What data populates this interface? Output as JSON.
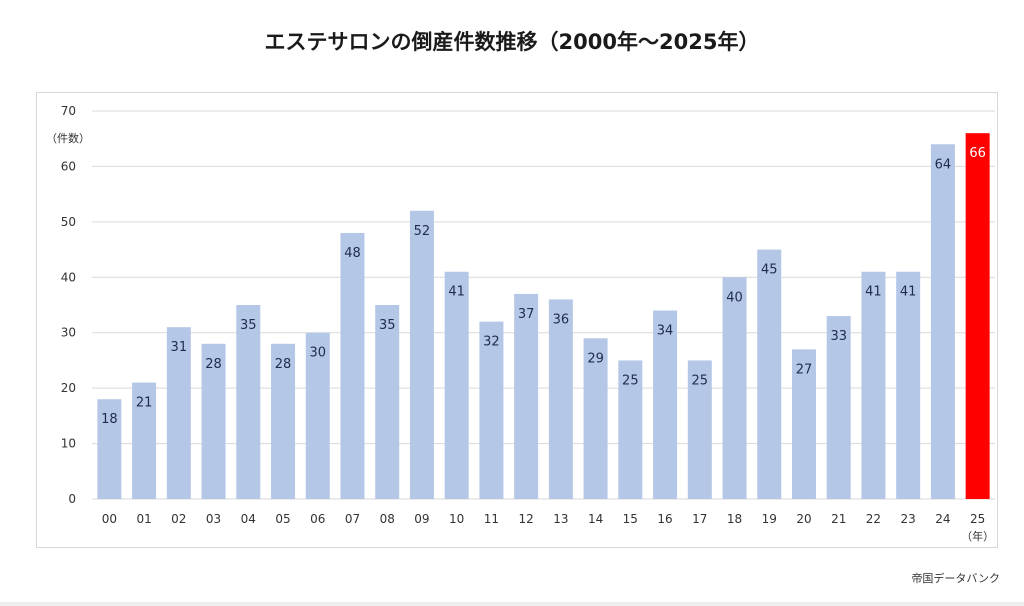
{
  "chart_data": {
    "type": "bar",
    "title": "エステサロンの倒産件数推移（2000年～2025年）",
    "ylabel": "（件数）",
    "xlabel": "（年）",
    "categories": [
      "00",
      "01",
      "02",
      "03",
      "04",
      "05",
      "06",
      "07",
      "08",
      "09",
      "10",
      "11",
      "12",
      "13",
      "14",
      "15",
      "16",
      "17",
      "18",
      "19",
      "20",
      "21",
      "22",
      "23",
      "24",
      "25"
    ],
    "values": [
      18,
      21,
      31,
      28,
      35,
      28,
      30,
      48,
      35,
      52,
      41,
      32,
      37,
      36,
      29,
      25,
      34,
      25,
      40,
      45,
      27,
      33,
      41,
      41,
      64,
      66
    ],
    "ylim": [
      0,
      70
    ],
    "yticks": [
      0,
      10,
      20,
      30,
      40,
      50,
      60,
      70
    ],
    "grid": true,
    "highlight_index": 25,
    "colors": {
      "bar": "#b4c7e7",
      "highlight": "#ff0000",
      "grid": "#d9d9d9",
      "label_dark": "#1f2d4d",
      "label_light": "#ffffff"
    }
  },
  "source": "帝国データバンク"
}
